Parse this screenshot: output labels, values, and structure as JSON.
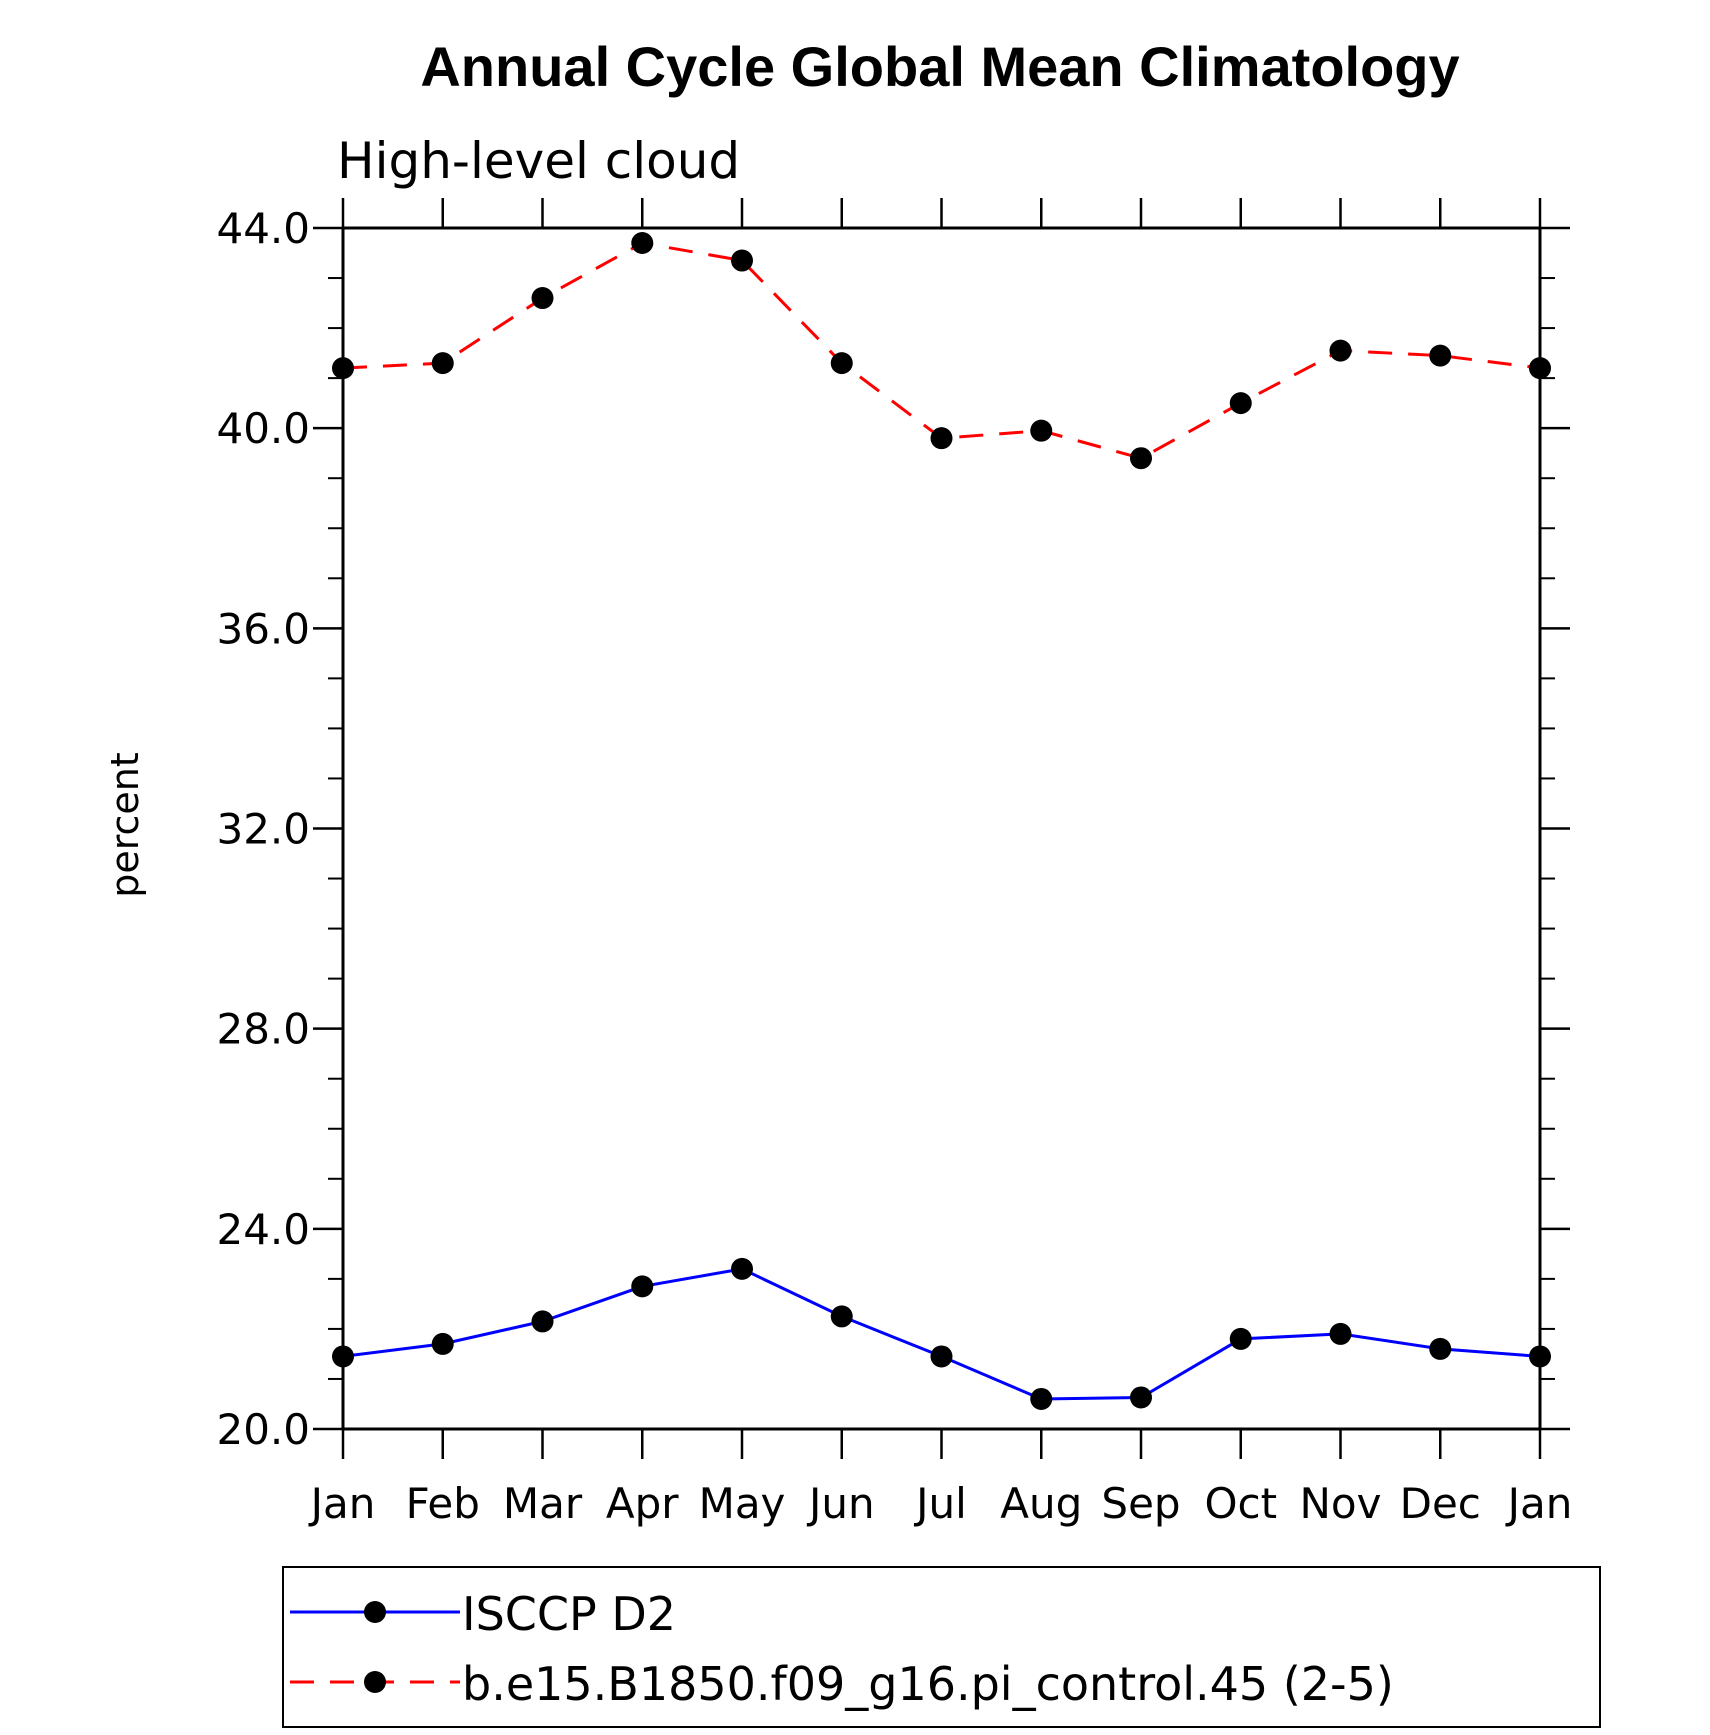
{
  "chart_data": {
    "type": "line",
    "title": "Annual Cycle Global Mean Climatology",
    "subtitle": "High-level cloud",
    "xlabel": "",
    "ylabel": "percent",
    "categories": [
      "Jan",
      "Feb",
      "Mar",
      "Apr",
      "May",
      "Jun",
      "Jul",
      "Aug",
      "Sep",
      "Oct",
      "Nov",
      "Dec",
      "Jan"
    ],
    "ylim": [
      20.0,
      44.0
    ],
    "yticks": [
      "20.0",
      "24.0",
      "28.0",
      "32.0",
      "36.0",
      "40.0",
      "44.0"
    ],
    "grid": false,
    "legend_position": "bottom",
    "series": [
      {
        "name": "ISCCP D2",
        "color": "#0000ff",
        "dash": "solid",
        "marker": "filled-circle",
        "values": [
          21.45,
          21.7,
          22.15,
          22.85,
          23.2,
          22.25,
          21.45,
          20.6,
          20.63,
          21.8,
          21.9,
          21.6,
          21.45
        ]
      },
      {
        "name": "b.e15.B1850.f09_g16.pi_control.45 (2-5)",
        "color": "#ff0000",
        "dash": "dashed",
        "marker": "filled-circle",
        "values": [
          41.2,
          41.3,
          42.6,
          43.7,
          43.35,
          41.3,
          39.8,
          39.95,
          39.4,
          40.5,
          41.55,
          41.45,
          41.2
        ]
      }
    ]
  }
}
